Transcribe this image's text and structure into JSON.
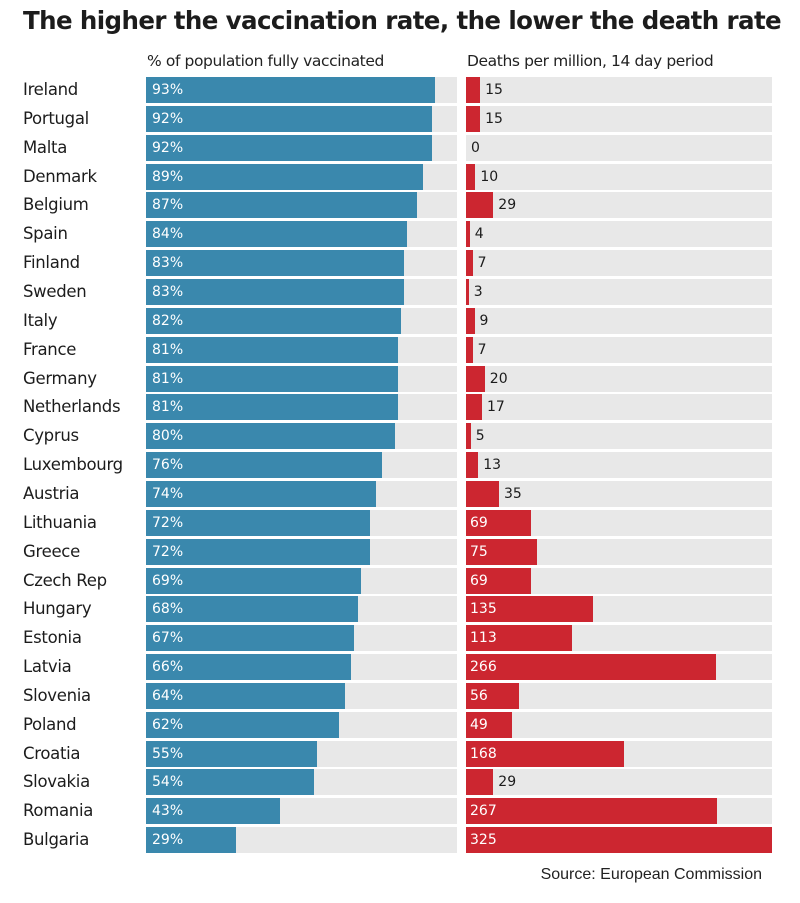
{
  "chart_data": {
    "type": "bar",
    "title": "The higher the vaccination rate, the lower the death rate",
    "source": "Source: European Commission",
    "categories": [
      "Ireland",
      "Portugal",
      "Malta",
      "Denmark",
      "Belgium",
      "Spain",
      "Finland",
      "Sweden",
      "Italy",
      "France",
      "Germany",
      "Netherlands",
      "Cyprus",
      "Luxembourg",
      "Austria",
      "Lithuania",
      "Greece",
      "Czech Rep",
      "Hungary",
      "Estonia",
      "Latvia",
      "Slovenia",
      "Poland",
      "Croatia",
      "Slovakia",
      "Romania",
      "Bulgaria"
    ],
    "series": [
      {
        "name": "% of population fully vaccinated",
        "values": [
          93,
          92,
          92,
          89,
          87,
          84,
          83,
          83,
          82,
          81,
          81,
          81,
          80,
          76,
          74,
          72,
          72,
          69,
          68,
          67,
          66,
          64,
          62,
          55,
          54,
          43,
          29
        ],
        "labels": [
          "93%",
          "92%",
          "92%",
          "89%",
          "87%",
          "84%",
          "83%",
          "83%",
          "82%",
          "81%",
          "81%",
          "81%",
          "80%",
          "76%",
          "74%",
          "72%",
          "72%",
          "69%",
          "68%",
          "67%",
          "66%",
          "64%",
          "62%",
          "55%",
          "54%",
          "43%",
          "29%"
        ],
        "max": 100,
        "color": "#3a88ad"
      },
      {
        "name": "Deaths per million, 14 day period",
        "values": [
          15,
          15,
          0,
          10,
          29,
          4,
          7,
          3,
          9,
          7,
          20,
          17,
          5,
          13,
          35,
          69,
          75,
          69,
          135,
          113,
          266,
          56,
          49,
          168,
          29,
          267,
          325
        ],
        "max": 325,
        "color": "#cc2630"
      }
    ],
    "track_color": "#e8e8e8"
  }
}
